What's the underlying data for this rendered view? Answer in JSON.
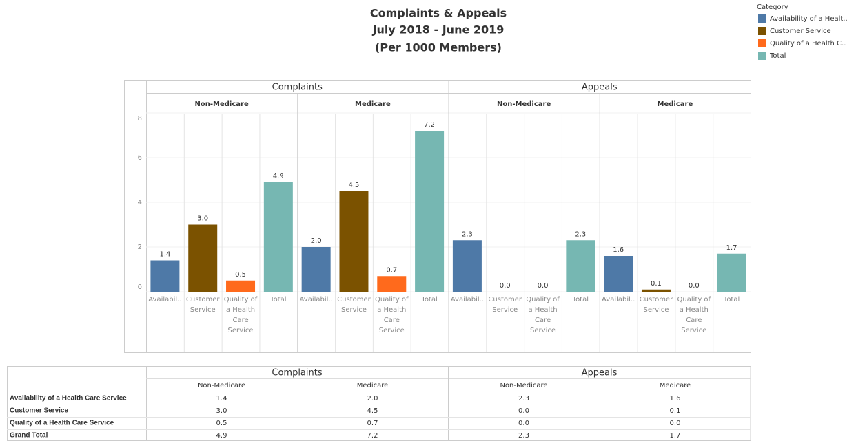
{
  "chart_data": {
    "type": "bar",
    "title": "Complaints & Appeals",
    "subtitle": [
      "July 2018 - June 2019",
      "(Per 1000 Members)"
    ],
    "categories": [
      "Availabil..",
      "Customer Service",
      "Quality of a Health Care Service",
      "Total"
    ],
    "colors": [
      "#4e79a7",
      "#7b5200",
      "#ff6a1c",
      "#76b7b2"
    ],
    "ylim": [
      0,
      8
    ],
    "yticks": [
      0,
      2,
      4,
      6,
      8
    ],
    "grid": true,
    "legend": {
      "title": "Category",
      "position": "top-right",
      "entries": [
        "Availability of a Healt..",
        "Customer Service",
        "Quality of  a Health C..",
        "Total"
      ]
    },
    "groups": [
      {
        "name": "Complaints",
        "panels": [
          {
            "name": "Non-Medicare",
            "values": [
              1.4,
              3.0,
              0.5,
              4.9
            ],
            "value_labels": [
              "1.4",
              "3.0",
              "0.5",
              "4.9"
            ]
          },
          {
            "name": "Medicare",
            "values": [
              2.0,
              4.5,
              0.7,
              7.2
            ],
            "value_labels": [
              "2.0",
              "4.5",
              "0.7",
              "7.2"
            ]
          }
        ]
      },
      {
        "name": "Appeals",
        "panels": [
          {
            "name": "Non-Medicare",
            "values": [
              2.3,
              0.0,
              0.0,
              2.3
            ],
            "value_labels": [
              "2.3",
              "0.0",
              "0.0",
              "2.3"
            ]
          },
          {
            "name": "Medicare",
            "values": [
              1.6,
              0.1,
              0.0,
              1.7
            ],
            "value_labels": [
              "1.6",
              "0.1",
              "0.0",
              "1.7"
            ]
          }
        ]
      }
    ]
  },
  "table": {
    "groups": [
      "Complaints",
      "Appeals"
    ],
    "subheaders": [
      "Non-Medicare",
      "Medicare",
      "Non-Medicare",
      "Medicare"
    ],
    "rows": [
      [
        "Availability of a Health Care Service",
        "1.4",
        "2.0",
        "2.3",
        "1.6"
      ],
      [
        "Customer Service",
        "3.0",
        "4.5",
        "0.0",
        "0.1"
      ],
      [
        "Quality of  a Health Care Service",
        "0.5",
        "0.7",
        "0.0",
        "0.0"
      ],
      [
        "Grand Total",
        "4.9",
        "7.2",
        "2.3",
        "1.7"
      ]
    ]
  }
}
